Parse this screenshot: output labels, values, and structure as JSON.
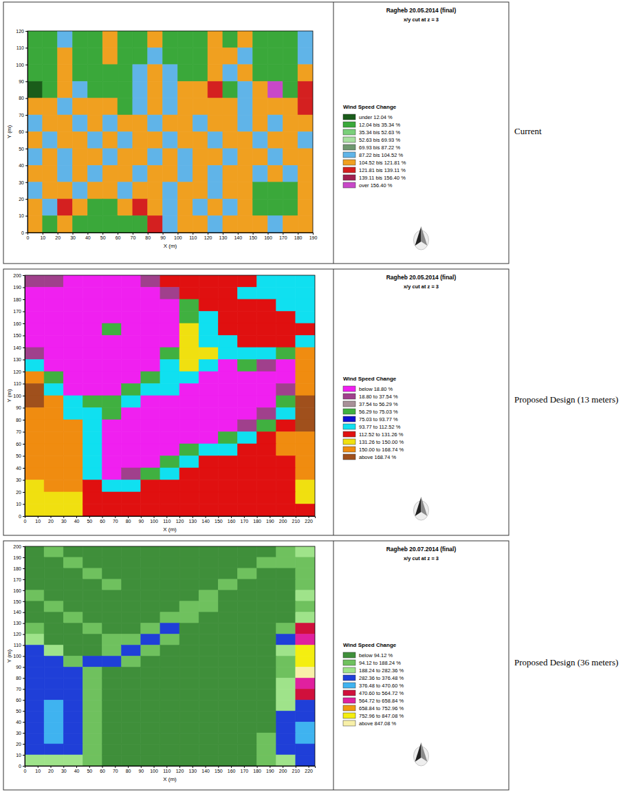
{
  "chart_data": [
    {
      "type": "heatmap",
      "title": "Ragheb 20.05.2014 (final)",
      "subtitle": "x/y cut at z = 3",
      "x_label": "X (m)",
      "y_label": "Y (m)",
      "annotations": [
        "Current"
      ],
      "xlim": [
        0,
        190
      ],
      "ylim": [
        0,
        120
      ],
      "xticks": [
        0,
        10,
        20,
        30,
        40,
        50,
        60,
        70,
        80,
        90,
        100,
        110,
        120,
        130,
        140,
        150,
        160,
        170,
        180,
        190
      ],
      "yticks": [
        0,
        10,
        20,
        30,
        40,
        50,
        60,
        70,
        80,
        90,
        100,
        110,
        120
      ],
      "colorbar": {
        "title": "Wind Speed Change",
        "bins": [
          12.04,
          35.34,
          52.63,
          69.93,
          87.22,
          104.52,
          121.81,
          139.11,
          156.4
        ],
        "labels": [
          "under 12.04 %",
          "12.04 bis 35.34 %",
          "35.34 bis 52.63 %",
          "52.63 bis 69.93 %",
          "69.93 bis 87.22 %",
          "87.22 bis 104.52 %",
          "104.52 bis 121.81 %",
          "121.81 bis 139.11 %",
          "139.11 bis 156.40 %",
          "over 156.40 %"
        ],
        "colors": [
          "#1a5c1a",
          "#3aa83a",
          "#7ad07a",
          "#a8e0a0",
          "#709870",
          "#60b4e8",
          "#f0a020",
          "#d42020",
          "#a02050",
          "#c848c8"
        ]
      },
      "cells": [
        [
          24,
          24,
          96,
          24,
          24,
          113,
          24,
          24,
          113,
          24,
          24,
          24,
          113,
          24,
          113,
          24,
          24,
          24,
          96
        ],
        [
          24,
          24,
          113,
          24,
          24,
          113,
          24,
          24,
          96,
          24,
          24,
          24,
          113,
          113,
          96,
          24,
          24,
          24,
          96
        ],
        [
          24,
          24,
          113,
          24,
          24,
          24,
          24,
          96,
          113,
          96,
          24,
          24,
          113,
          96,
          113,
          24,
          24,
          24,
          113
        ],
        [
          5,
          24,
          113,
          96,
          24,
          24,
          24,
          96,
          113,
          96,
          113,
          113,
          130,
          24,
          96,
          113,
          170,
          24,
          130
        ],
        [
          113,
          113,
          96,
          113,
          113,
          113,
          24,
          96,
          113,
          96,
          113,
          113,
          113,
          113,
          96,
          113,
          113,
          113,
          130
        ],
        [
          96,
          113,
          113,
          96,
          113,
          96,
          113,
          113,
          96,
          113,
          113,
          96,
          113,
          113,
          96,
          113,
          96,
          113,
          113
        ],
        [
          113,
          96,
          113,
          113,
          96,
          113,
          96,
          113,
          113,
          96,
          113,
          113,
          96,
          113,
          113,
          96,
          113,
          113,
          96
        ],
        [
          96,
          113,
          96,
          113,
          113,
          96,
          113,
          113,
          96,
          113,
          96,
          113,
          113,
          96,
          113,
          113,
          96,
          113,
          113
        ],
        [
          113,
          113,
          96,
          113,
          96,
          113,
          113,
          96,
          113,
          113,
          96,
          113,
          96,
          113,
          113,
          96,
          113,
          96,
          113
        ],
        [
          96,
          113,
          113,
          96,
          113,
          113,
          96,
          113,
          113,
          96,
          113,
          113,
          96,
          113,
          113,
          24,
          24,
          24,
          113
        ],
        [
          113,
          96,
          130,
          113,
          24,
          24,
          113,
          130,
          113,
          96,
          113,
          96,
          113,
          96,
          113,
          24,
          24,
          24,
          113
        ],
        [
          113,
          24,
          113,
          24,
          24,
          24,
          24,
          24,
          130,
          96,
          113,
          113,
          96,
          113,
          113,
          113,
          96,
          113,
          113
        ]
      ]
    },
    {
      "type": "heatmap",
      "title": "Ragheb 20.05.2014 (final)",
      "subtitle": "x/y cut at z = 3",
      "x_label": "X (m)",
      "y_label": "Y (m)",
      "annotations": [
        "Proposed Design (13 meters)"
      ],
      "xlim": [
        0,
        225
      ],
      "ylim": [
        0,
        200
      ],
      "xticks": [
        0,
        10,
        20,
        30,
        40,
        50,
        60,
        70,
        80,
        90,
        100,
        110,
        120,
        130,
        140,
        150,
        160,
        170,
        180,
        190,
        200,
        210,
        220
      ],
      "yticks": [
        0,
        10,
        20,
        30,
        40,
        50,
        60,
        70,
        80,
        90,
        100,
        110,
        120,
        130,
        140,
        150,
        160,
        170,
        180,
        190,
        200
      ],
      "colorbar": {
        "title": "Wind Speed Change",
        "bins": [
          18.8,
          37.54,
          56.29,
          75.03,
          93.77,
          112.52,
          131.26,
          150.0,
          168.74
        ],
        "labels": [
          "below 18.80 %",
          "18.80 to 37.54 %",
          "37.54 to 56.29 %",
          "56.29 to 75.03 %",
          "75.03 to 93.77 %",
          "93.77 to 112.52 %",
          "112.52 to 131.26 %",
          "131.26 to 150.00 %",
          "150.00 to 168.74 %",
          "above 168.74 %"
        ],
        "colors": [
          "#f020f0",
          "#a0408c",
          "#a89098",
          "#40b040",
          "#1010d0",
          "#10e0f0",
          "#e01010",
          "#f0e010",
          "#f08c10",
          "#a0501c"
        ]
      },
      "cells": [
        [
          28,
          28,
          10,
          10,
          10,
          10,
          28,
          122,
          122,
          122,
          122,
          122,
          103,
          103,
          103
        ],
        [
          10,
          10,
          10,
          10,
          10,
          10,
          10,
          28,
          122,
          122,
          122,
          103,
          103,
          103,
          103
        ],
        [
          10,
          10,
          10,
          10,
          10,
          10,
          10,
          10,
          66,
          122,
          122,
          122,
          122,
          103,
          103
        ],
        [
          10,
          10,
          10,
          10,
          10,
          10,
          10,
          10,
          66,
          103,
          122,
          122,
          122,
          122,
          103
        ],
        [
          10,
          10,
          10,
          10,
          66,
          10,
          10,
          10,
          140,
          103,
          122,
          122,
          122,
          122,
          122
        ],
        [
          10,
          10,
          10,
          10,
          10,
          10,
          10,
          10,
          140,
          103,
          103,
          122,
          122,
          122,
          103
        ],
        [
          28,
          10,
          10,
          10,
          10,
          10,
          10,
          66,
          140,
          140,
          103,
          103,
          103,
          66,
          159
        ],
        [
          103,
          10,
          10,
          10,
          10,
          10,
          10,
          103,
          140,
          103,
          10,
          66,
          28,
          10,
          159
        ],
        [
          159,
          66,
          10,
          10,
          10,
          10,
          66,
          103,
          103,
          10,
          10,
          10,
          10,
          10,
          159
        ],
        [
          180,
          103,
          10,
          10,
          10,
          66,
          103,
          103,
          10,
          10,
          10,
          10,
          10,
          28,
          159
        ],
        [
          180,
          159,
          103,
          66,
          66,
          103,
          10,
          10,
          10,
          10,
          10,
          10,
          10,
          66,
          180
        ],
        [
          159,
          159,
          103,
          103,
          66,
          10,
          10,
          10,
          10,
          10,
          10,
          10,
          28,
          103,
          180
        ],
        [
          159,
          159,
          159,
          103,
          10,
          10,
          10,
          10,
          10,
          10,
          10,
          28,
          66,
          122,
          180
        ],
        [
          159,
          159,
          159,
          103,
          10,
          10,
          10,
          10,
          10,
          10,
          66,
          103,
          122,
          159,
          159
        ],
        [
          159,
          159,
          159,
          103,
          10,
          10,
          10,
          10,
          66,
          103,
          103,
          122,
          122,
          159,
          159
        ],
        [
          159,
          159,
          159,
          103,
          10,
          10,
          10,
          66,
          103,
          122,
          122,
          122,
          122,
          122,
          159
        ],
        [
          159,
          159,
          159,
          103,
          10,
          28,
          66,
          103,
          122,
          122,
          122,
          122,
          122,
          122,
          159
        ],
        [
          140,
          159,
          159,
          122,
          103,
          103,
          122,
          122,
          122,
          122,
          122,
          122,
          122,
          122,
          140
        ],
        [
          140,
          140,
          140,
          122,
          122,
          122,
          122,
          122,
          122,
          122,
          122,
          122,
          122,
          122,
          140
        ],
        [
          140,
          140,
          140,
          122,
          122,
          122,
          122,
          122,
          122,
          122,
          122,
          122,
          122,
          122,
          122
        ]
      ]
    },
    {
      "type": "heatmap",
      "title": "Ragheb 20.07.2014 (final)",
      "subtitle": "x/y cut at z = 3",
      "x_label": "X (m)",
      "y_label": "Y (m)",
      "annotations": [
        "Proposed Design (36 meters)"
      ],
      "xlim": [
        0,
        225
      ],
      "ylim": [
        0,
        200
      ],
      "xticks": [
        0,
        10,
        20,
        30,
        40,
        50,
        60,
        70,
        80,
        90,
        100,
        110,
        120,
        130,
        140,
        150,
        160,
        170,
        180,
        190,
        200,
        210,
        220
      ],
      "yticks": [
        0,
        10,
        20,
        30,
        40,
        50,
        60,
        70,
        80,
        90,
        100,
        110,
        120,
        130,
        140,
        150,
        160,
        170,
        180,
        190,
        200
      ],
      "colorbar": {
        "title": "Wind Speed Change",
        "bins": [
          94.12,
          188.24,
          282.36,
          376.48,
          470.6,
          564.72,
          658.84,
          752.96,
          847.08
        ],
        "labels": [
          "below 94.12 %",
          "94.12 to 188.24 %",
          "188.24 to 282.36 %",
          "282.36 to 376.48 %",
          "376.48 to 470.60 %",
          "470.60 to 564.72 %",
          "564.72 to 658.84 %",
          "658.84 to 752.96 %",
          "752.96 to 847.08 %",
          "above 847.08 %"
        ],
        "colors": [
          "#3f8f3a",
          "#6fc15e",
          "#9fe38a",
          "#1f3fd8",
          "#3fb3f0",
          "#d0103c",
          "#e0209e",
          "#f09a10",
          "#f4ee10",
          "#f8f0a8"
        ]
      },
      "cells": [
        [
          47,
          141,
          47,
          47,
          47,
          47,
          47,
          47,
          47,
          47,
          47,
          47,
          47,
          141,
          235
        ],
        [
          47,
          47,
          141,
          47,
          47,
          47,
          47,
          47,
          47,
          47,
          47,
          47,
          141,
          141,
          141
        ],
        [
          47,
          47,
          47,
          141,
          47,
          47,
          47,
          47,
          47,
          47,
          47,
          141,
          47,
          47,
          141
        ],
        [
          47,
          47,
          47,
          47,
          141,
          47,
          47,
          47,
          47,
          47,
          141,
          47,
          47,
          47,
          141
        ],
        [
          141,
          47,
          47,
          47,
          47,
          47,
          47,
          47,
          47,
          141,
          47,
          47,
          47,
          47,
          235
        ],
        [
          47,
          141,
          47,
          47,
          47,
          47,
          47,
          47,
          141,
          141,
          47,
          47,
          47,
          47,
          141
        ],
        [
          47,
          47,
          141,
          47,
          47,
          47,
          47,
          141,
          141,
          47,
          47,
          47,
          47,
          47,
          235
        ],
        [
          141,
          47,
          47,
          141,
          47,
          47,
          141,
          329,
          47,
          47,
          47,
          47,
          47,
          141,
          517
        ],
        [
          235,
          47,
          47,
          47,
          141,
          141,
          329,
          141,
          47,
          47,
          47,
          47,
          47,
          329,
          611
        ],
        [
          329,
          235,
          47,
          47,
          141,
          329,
          141,
          47,
          47,
          47,
          47,
          47,
          47,
          235,
          800
        ],
        [
          329,
          329,
          141,
          329,
          329,
          141,
          47,
          47,
          47,
          47,
          47,
          47,
          47,
          141,
          800
        ],
        [
          329,
          329,
          329,
          141,
          47,
          47,
          47,
          47,
          47,
          47,
          47,
          47,
          47,
          141,
          900
        ],
        [
          329,
          329,
          329,
          141,
          47,
          47,
          47,
          47,
          47,
          47,
          47,
          47,
          47,
          235,
          611
        ],
        [
          329,
          329,
          329,
          141,
          47,
          47,
          47,
          47,
          47,
          47,
          47,
          47,
          47,
          235,
          517
        ],
        [
          329,
          423,
          329,
          141,
          47,
          47,
          47,
          47,
          47,
          47,
          47,
          47,
          47,
          235,
          329
        ],
        [
          329,
          423,
          329,
          141,
          47,
          47,
          47,
          47,
          47,
          47,
          47,
          47,
          47,
          329,
          329
        ],
        [
          329,
          423,
          329,
          141,
          47,
          47,
          47,
          47,
          47,
          47,
          47,
          47,
          47,
          329,
          423
        ],
        [
          329,
          423,
          329,
          141,
          47,
          47,
          47,
          47,
          47,
          47,
          47,
          47,
          141,
          329,
          423
        ],
        [
          329,
          329,
          329,
          141,
          47,
          47,
          47,
          47,
          47,
          47,
          47,
          47,
          141,
          329,
          329
        ],
        [
          235,
          235,
          235,
          141,
          47,
          47,
          47,
          47,
          47,
          47,
          47,
          47,
          141,
          235,
          329
        ]
      ]
    }
  ]
}
